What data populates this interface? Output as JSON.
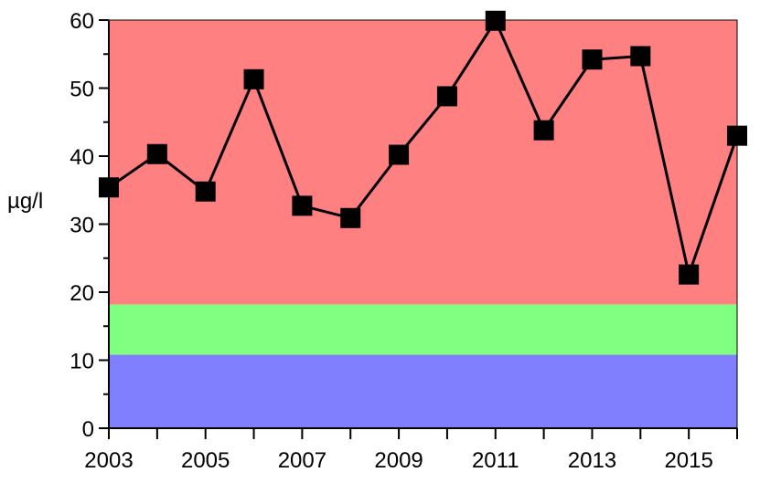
{
  "chart_data": {
    "type": "line",
    "title": "",
    "xlabel": "",
    "ylabel": "µg/l",
    "xlim": [
      2003,
      2016
    ],
    "ylim": [
      0,
      60
    ],
    "grid": false,
    "x_ticks": [
      2003,
      2005,
      2007,
      2009,
      2011,
      2013,
      2015
    ],
    "x_tick_labels": [
      "2003",
      "2005",
      "2007",
      "2009",
      "2011",
      "2013",
      "2015"
    ],
    "x_minor_ticks": [
      2004,
      2006,
      2008,
      2010,
      2012,
      2014,
      2016
    ],
    "y_ticks": [
      0,
      10,
      20,
      30,
      40,
      50,
      60
    ],
    "y_tick_labels": [
      "0",
      "10",
      "20",
      "30",
      "40",
      "50",
      "60"
    ],
    "bands": [
      {
        "from": 0,
        "to": 10.8,
        "color": "#8080ff"
      },
      {
        "from": 10.8,
        "to": 18.2,
        "color": "#80ff80"
      },
      {
        "from": 18.2,
        "to": 60,
        "color": "#ff8080"
      }
    ],
    "series": [
      {
        "x": [
          2003,
          2004,
          2005,
          2006,
          2007,
          2008,
          2009,
          2010,
          2011,
          2012,
          2013,
          2014,
          2015,
          2016
        ],
        "values": [
          35.4,
          40.3,
          34.8,
          51.3,
          32.7,
          30.9,
          40.2,
          48.8,
          59.9,
          43.8,
          54.2,
          54.7,
          22.6,
          43.0
        ],
        "color": "#000000",
        "marker": "square"
      }
    ]
  }
}
